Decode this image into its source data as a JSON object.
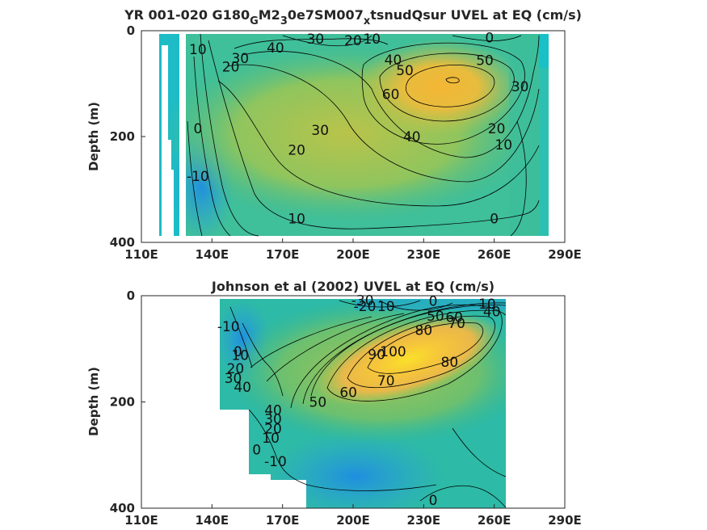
{
  "chart_data": [
    {
      "type": "heatmap",
      "title": "YR 001-020 G180_GM2_30e7SM007_xtsnudQsur UVEL at EQ (cm/s)",
      "title_parts": [
        {
          "text": "YR 001-020 G180",
          "sub": false
        },
        {
          "text": "G",
          "sub": true
        },
        {
          "text": "M2",
          "sub": false
        },
        {
          "text": "3",
          "sub": true
        },
        {
          "text": "0e7SM007",
          "sub": false
        },
        {
          "text": "x",
          "sub": true
        },
        {
          "text": "tsnudQsur UVEL at EQ (cm/s)",
          "sub": false
        }
      ],
      "ylabel": "Depth (m)",
      "xlabel": "",
      "xlim": [
        110,
        290
      ],
      "ylim": [
        0,
        400
      ],
      "y_reversed": true,
      "x_ticks": [
        "110E",
        "140E",
        "170E",
        "200E",
        "230E",
        "260E",
        "290E"
      ],
      "y_ticks": [
        "0",
        "200",
        "400"
      ],
      "colormap": "parula",
      "contour_labels": [
        {
          "text": "30",
          "lon": 184,
          "depth": 15
        },
        {
          "text": "20",
          "lon": 200,
          "depth": 18
        },
        {
          "text": "10",
          "lon": 208,
          "depth": 15
        },
        {
          "text": "0",
          "lon": 258,
          "depth": 13
        },
        {
          "text": "40",
          "lon": 167,
          "depth": 32
        },
        {
          "text": "10",
          "lon": 134,
          "depth": 35
        },
        {
          "text": "30",
          "lon": 152,
          "depth": 52
        },
        {
          "text": "20",
          "lon": 148,
          "depth": 68
        },
        {
          "text": "40",
          "lon": 217,
          "depth": 55
        },
        {
          "text": "50",
          "lon": 222,
          "depth": 75
        },
        {
          "text": "50",
          "lon": 256,
          "depth": 56
        },
        {
          "text": "60",
          "lon": 216,
          "depth": 120
        },
        {
          "text": "30",
          "lon": 271,
          "depth": 105
        },
        {
          "text": "0",
          "lon": 134,
          "depth": 185
        },
        {
          "text": "30",
          "lon": 186,
          "depth": 188
        },
        {
          "text": "40",
          "lon": 225,
          "depth": 200
        },
        {
          "text": "20",
          "lon": 261,
          "depth": 185
        },
        {
          "text": "20",
          "lon": 176,
          "depth": 225
        },
        {
          "text": "10",
          "lon": 264,
          "depth": 215
        },
        {
          "text": "-10",
          "lon": 134,
          "depth": 275
        },
        {
          "text": "10",
          "lon": 176,
          "depth": 355
        },
        {
          "text": "0",
          "lon": 260,
          "depth": 355
        }
      ]
    },
    {
      "type": "heatmap",
      "title": "Johnson et al (2002) UVEL at EQ (cm/s)",
      "ylabel": "Depth (m)",
      "xlabel": "",
      "xlim": [
        110,
        290
      ],
      "ylim": [
        0,
        400
      ],
      "y_reversed": true,
      "x_ticks": [
        "110E",
        "140E",
        "170E",
        "200E",
        "230E",
        "260E",
        "290E"
      ],
      "y_ticks": [
        "0",
        "200",
        "400"
      ],
      "colormap": "parula",
      "contour_labels": [
        {
          "text": "-30",
          "lon": 204,
          "depth": 8
        },
        {
          "text": "-20",
          "lon": 205,
          "depth": 20
        },
        {
          "text": "10",
          "lon": 214,
          "depth": 20
        },
        {
          "text": "0",
          "lon": 234,
          "depth": 10
        },
        {
          "text": "10",
          "lon": 257,
          "depth": 15
        },
        {
          "text": "50",
          "lon": 235,
          "depth": 38
        },
        {
          "text": "60",
          "lon": 243,
          "depth": 40
        },
        {
          "text": "40",
          "lon": 259,
          "depth": 30
        },
        {
          "text": "70",
          "lon": 244,
          "depth": 52
        },
        {
          "text": "80",
          "lon": 230,
          "depth": 65
        },
        {
          "text": "-10",
          "lon": 147,
          "depth": 58
        },
        {
          "text": "0",
          "lon": 151,
          "depth": 105
        },
        {
          "text": "10",
          "lon": 152,
          "depth": 112
        },
        {
          "text": "90",
          "lon": 210,
          "depth": 110
        },
        {
          "text": "100",
          "lon": 217,
          "depth": 105
        },
        {
          "text": "80",
          "lon": 241,
          "depth": 125
        },
        {
          "text": "20",
          "lon": 150,
          "depth": 137
        },
        {
          "text": "30",
          "lon": 149,
          "depth": 155
        },
        {
          "text": "70",
          "lon": 214,
          "depth": 160
        },
        {
          "text": "40",
          "lon": 153,
          "depth": 172
        },
        {
          "text": "60",
          "lon": 198,
          "depth": 182
        },
        {
          "text": "50",
          "lon": 185,
          "depth": 200
        },
        {
          "text": "40",
          "lon": 166,
          "depth": 215
        },
        {
          "text": "30",
          "lon": 166,
          "depth": 232
        },
        {
          "text": "20",
          "lon": 166,
          "depth": 250
        },
        {
          "text": "10",
          "lon": 165,
          "depth": 268
        },
        {
          "text": "0",
          "lon": 159,
          "depth": 290
        },
        {
          "text": "-10",
          "lon": 167,
          "depth": 312
        },
        {
          "text": "0",
          "lon": 234,
          "depth": 385
        }
      ]
    }
  ]
}
